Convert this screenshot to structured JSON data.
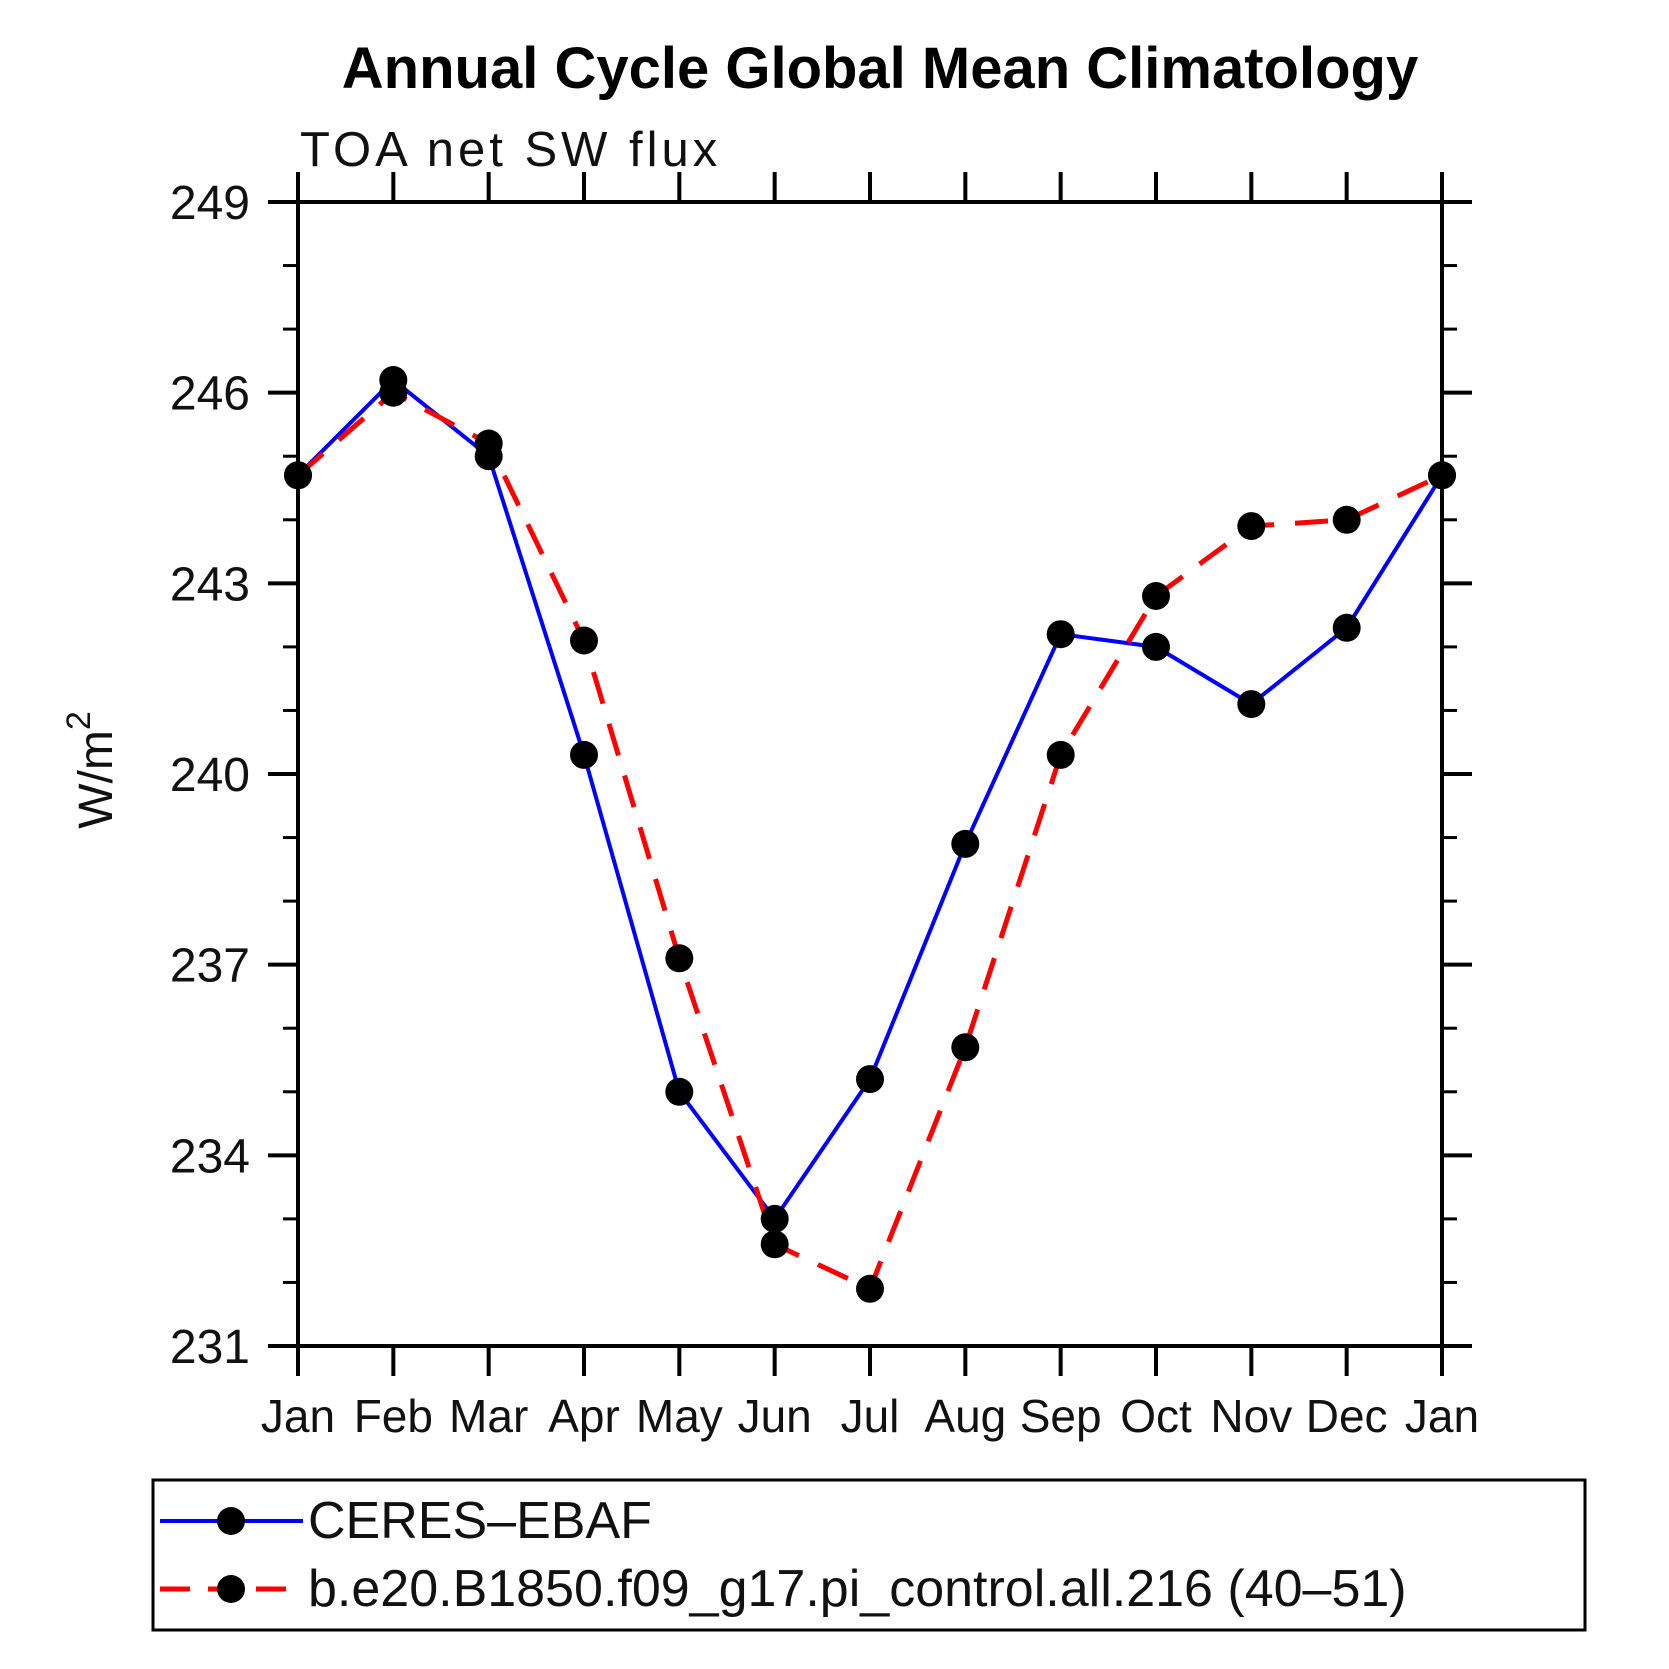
{
  "page_background": "#ffffff",
  "chart_data": {
    "type": "line",
    "title": "Annual Cycle Global Mean Climatology",
    "subtitle": "TOA net SW flux",
    "ylabel_base": "W/m",
    "ylabel_exponent": "2",
    "categories": [
      "Jan",
      "Feb",
      "Mar",
      "Apr",
      "May",
      "Jun",
      "Jul",
      "Aug",
      "Sep",
      "Oct",
      "Nov",
      "Dec",
      "Jan"
    ],
    "ylim": [
      231,
      249
    ],
    "y_major_ticks": [
      249,
      246,
      243,
      240,
      237,
      234,
      231
    ],
    "y_minor_step": 1,
    "grid": false,
    "legend_position": "bottom",
    "marker": {
      "shape": "circle",
      "color": "#000000",
      "radius": 14
    },
    "series": [
      {
        "name": "CERES–EBAF",
        "color": "#0000ff",
        "line_style": "solid",
        "line_width": 4,
        "values": [
          244.7,
          246.2,
          245.0,
          240.3,
          235.0,
          233.0,
          235.2,
          238.9,
          242.2,
          242.0,
          241.1,
          242.3,
          244.7
        ]
      },
      {
        "name": "b.e20.B1850.f09_g17.pi_control.all.216 (40–51)",
        "color": "#ff0000",
        "line_style": "dashed",
        "line_width": 5,
        "values": [
          244.7,
          246.0,
          245.2,
          242.1,
          237.1,
          232.6,
          231.9,
          235.7,
          240.3,
          242.8,
          243.9,
          244.0,
          244.7
        ]
      }
    ]
  }
}
